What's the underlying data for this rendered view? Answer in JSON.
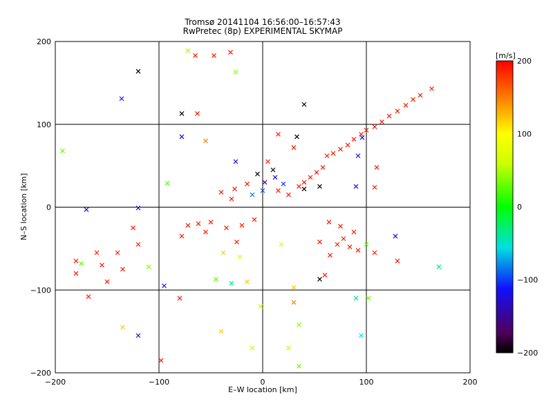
{
  "chart_data": {
    "type": "scatter",
    "title": "Tromsø 20141104 16:56:00–16:57:43",
    "subtitle": "RwPretec (8p) EXPERIMENTAL SKYMAP",
    "xlabel": "E–W location [km]",
    "ylabel": "N–S location [km]",
    "xlim": [
      -200,
      200
    ],
    "ylim": [
      -200,
      200
    ],
    "xticks": [
      -200,
      -100,
      0,
      100,
      200
    ],
    "yticks": [
      -200,
      -100,
      0,
      100,
      200
    ],
    "grid": true,
    "colorbar": {
      "label": "[m/s]",
      "ticks": [
        200,
        100,
        0,
        -100,
        -200
      ],
      "range": [
        -200,
        200
      ]
    },
    "points": [
      {
        "x": -120,
        "y": 164,
        "v": -200,
        "m": "x"
      },
      {
        "x": -136,
        "y": 131,
        "v": -110,
        "m": "x"
      },
      {
        "x": -72,
        "y": 189,
        "v": 50,
        "m": "x"
      },
      {
        "x": -65,
        "y": 183,
        "v": 190,
        "m": "x"
      },
      {
        "x": -47,
        "y": 183,
        "v": 190,
        "m": "x"
      },
      {
        "x": -31,
        "y": 187,
        "v": 190,
        "m": "x"
      },
      {
        "x": -26,
        "y": 163,
        "v": 40,
        "m": "x"
      },
      {
        "x": -78,
        "y": 113,
        "v": -200,
        "m": "x"
      },
      {
        "x": -63,
        "y": 113,
        "v": 190,
        "m": "x"
      },
      {
        "x": 40,
        "y": 124,
        "v": -200,
        "m": "x"
      },
      {
        "x": -78,
        "y": 85,
        "v": -110,
        "m": "x"
      },
      {
        "x": -55,
        "y": 80,
        "v": 150,
        "m": "x"
      },
      {
        "x": -193,
        "y": 68,
        "v": 30,
        "m": "x"
      },
      {
        "x": -120,
        "y": -1,
        "v": -120,
        "m": "x"
      },
      {
        "x": -170,
        "y": -3,
        "v": -120,
        "m": "x"
      },
      {
        "x": -92,
        "y": 29,
        "v": 30,
        "m": "x"
      },
      {
        "x": -26,
        "y": 55,
        "v": -120,
        "m": "x"
      },
      {
        "x": 30,
        "y": 72,
        "v": 190,
        "m": "x"
      },
      {
        "x": 15,
        "y": 88,
        "v": 190,
        "m": "x"
      },
      {
        "x": 33,
        "y": 85,
        "v": -200,
        "m": "x"
      },
      {
        "x": 5,
        "y": 55,
        "v": 190,
        "m": "x"
      },
      {
        "x": 10,
        "y": 45,
        "v": -200,
        "m": "x"
      },
      {
        "x": -5,
        "y": 40,
        "v": -200,
        "m": "x"
      },
      {
        "x": 2,
        "y": 30,
        "v": -150,
        "m": "x"
      },
      {
        "x": 12,
        "y": 36,
        "v": -120,
        "m": "x"
      },
      {
        "x": 20,
        "y": 28,
        "v": -100,
        "m": "x"
      },
      {
        "x": -15,
        "y": 28,
        "v": 190,
        "m": "x"
      },
      {
        "x": -27,
        "y": 22,
        "v": 190,
        "m": "x"
      },
      {
        "x": -40,
        "y": 18,
        "v": 190,
        "m": "x"
      },
      {
        "x": -30,
        "y": 10,
        "v": 190,
        "m": "x"
      },
      {
        "x": -10,
        "y": 15,
        "v": -80,
        "m": "x"
      },
      {
        "x": 0,
        "y": 20,
        "v": -90,
        "m": "x"
      },
      {
        "x": 15,
        "y": 20,
        "v": 190,
        "m": "x"
      },
      {
        "x": 25,
        "y": 15,
        "v": 190,
        "m": "x"
      },
      {
        "x": 35,
        "y": 25,
        "v": 190,
        "m": "x"
      },
      {
        "x": 40,
        "y": 30,
        "v": 190,
        "m": "x"
      },
      {
        "x": 46,
        "y": 36,
        "v": 190,
        "m": "x"
      },
      {
        "x": 52,
        "y": 42,
        "v": 190,
        "m": "x"
      },
      {
        "x": 58,
        "y": 48,
        "v": 190,
        "m": "x"
      },
      {
        "x": 40,
        "y": 22,
        "v": -200,
        "m": "x"
      },
      {
        "x": 55,
        "y": 25,
        "v": -200,
        "m": "x"
      },
      {
        "x": 62,
        "y": 62,
        "v": 190,
        "m": "x"
      },
      {
        "x": 68,
        "y": 65,
        "v": 190,
        "m": "x"
      },
      {
        "x": 75,
        "y": 70,
        "v": 190,
        "m": "x"
      },
      {
        "x": 82,
        "y": 75,
        "v": 190,
        "m": "x"
      },
      {
        "x": 88,
        "y": 82,
        "v": 190,
        "m": "x"
      },
      {
        "x": 95,
        "y": 88,
        "v": 190,
        "m": "x"
      },
      {
        "x": 100,
        "y": 93,
        "v": 190,
        "m": "x"
      },
      {
        "x": 108,
        "y": 97,
        "v": 190,
        "m": "x"
      },
      {
        "x": 115,
        "y": 103,
        "v": 190,
        "m": "x"
      },
      {
        "x": 122,
        "y": 110,
        "v": 190,
        "m": "x"
      },
      {
        "x": 130,
        "y": 116,
        "v": 190,
        "m": "x"
      },
      {
        "x": 138,
        "y": 123,
        "v": 190,
        "m": "x"
      },
      {
        "x": 145,
        "y": 130,
        "v": 190,
        "m": "x"
      },
      {
        "x": 152,
        "y": 135,
        "v": 190,
        "m": "x"
      },
      {
        "x": 163,
        "y": 143,
        "v": 190,
        "m": "x"
      },
      {
        "x": 96,
        "y": 84,
        "v": -120,
        "m": "x"
      },
      {
        "x": 92,
        "y": 62,
        "v": -110,
        "m": "x"
      },
      {
        "x": 110,
        "y": 48,
        "v": 190,
        "m": "x"
      },
      {
        "x": 90,
        "y": 25,
        "v": -110,
        "m": "x"
      },
      {
        "x": 108,
        "y": 24,
        "v": 190,
        "m": "x"
      },
      {
        "x": 64,
        "y": -18,
        "v": 190,
        "m": "x"
      },
      {
        "x": 75,
        "y": -23,
        "v": 190,
        "m": "x"
      },
      {
        "x": 88,
        "y": -30,
        "v": 190,
        "m": "x"
      },
      {
        "x": 78,
        "y": -38,
        "v": 190,
        "m": "x"
      },
      {
        "x": 72,
        "y": -45,
        "v": 190,
        "m": "x"
      },
      {
        "x": 84,
        "y": -48,
        "v": 190,
        "m": "x"
      },
      {
        "x": 92,
        "y": -52,
        "v": 190,
        "m": "x"
      },
      {
        "x": 65,
        "y": -58,
        "v": 190,
        "m": "x"
      },
      {
        "x": 55,
        "y": -42,
        "v": 190,
        "m": "x"
      },
      {
        "x": 100,
        "y": -45,
        "v": 30,
        "m": "x"
      },
      {
        "x": 108,
        "y": -55,
        "v": 190,
        "m": "x"
      },
      {
        "x": 130,
        "y": -65,
        "v": 190,
        "m": "x"
      },
      {
        "x": 128,
        "y": -35,
        "v": -120,
        "m": "x"
      },
      {
        "x": 170,
        "y": -72,
        "v": -30,
        "m": "x"
      },
      {
        "x": 60,
        "y": -82,
        "v": 190,
        "m": "x"
      },
      {
        "x": 55,
        "y": -87,
        "v": -200,
        "m": "x"
      },
      {
        "x": -8,
        "y": -15,
        "v": 190,
        "m": "x"
      },
      {
        "x": -20,
        "y": -22,
        "v": 190,
        "m": "x"
      },
      {
        "x": -35,
        "y": -25,
        "v": 190,
        "m": "x"
      },
      {
        "x": -50,
        "y": -18,
        "v": 190,
        "m": "x"
      },
      {
        "x": -62,
        "y": -20,
        "v": 190,
        "m": "x"
      },
      {
        "x": -72,
        "y": -22,
        "v": 190,
        "m": "x"
      },
      {
        "x": -55,
        "y": -30,
        "v": 190,
        "m": "x"
      },
      {
        "x": -78,
        "y": -35,
        "v": 190,
        "m": "x"
      },
      {
        "x": -25,
        "y": -42,
        "v": 190,
        "m": "x"
      },
      {
        "x": -38,
        "y": -55,
        "v": 120,
        "m": "x"
      },
      {
        "x": -120,
        "y": -45,
        "v": 190,
        "m": "x"
      },
      {
        "x": -125,
        "y": -25,
        "v": 190,
        "m": "x"
      },
      {
        "x": -140,
        "y": -55,
        "v": 190,
        "m": "x"
      },
      {
        "x": -160,
        "y": -55,
        "v": 190,
        "m": "x"
      },
      {
        "x": -180,
        "y": -65,
        "v": 190,
        "m": "x"
      },
      {
        "x": -155,
        "y": -70,
        "v": 190,
        "m": "x"
      },
      {
        "x": -135,
        "y": -75,
        "v": 190,
        "m": "x"
      },
      {
        "x": -150,
        "y": -90,
        "v": 190,
        "m": "x"
      },
      {
        "x": -180,
        "y": -80,
        "v": 190,
        "m": "x"
      },
      {
        "x": -168,
        "y": -108,
        "v": 190,
        "m": "x"
      },
      {
        "x": -110,
        "y": -72,
        "v": 40,
        "m": "x"
      },
      {
        "x": -175,
        "y": -68,
        "v": 30,
        "m": "x"
      },
      {
        "x": -15,
        "y": -90,
        "v": 120,
        "m": "x"
      },
      {
        "x": -45,
        "y": -87,
        "v": 30,
        "m": "x"
      },
      {
        "x": -95,
        "y": -95,
        "v": -120,
        "m": "x"
      },
      {
        "x": -80,
        "y": -110,
        "v": 190,
        "m": "x"
      },
      {
        "x": -30,
        "y": -92,
        "v": -30,
        "m": "x"
      },
      {
        "x": 30,
        "y": -97,
        "v": 120,
        "m": "x"
      },
      {
        "x": 30,
        "y": -115,
        "v": 150,
        "m": "x"
      },
      {
        "x": 35,
        "y": -142,
        "v": 40,
        "m": "x"
      },
      {
        "x": 25,
        "y": -170,
        "v": 60,
        "m": "x"
      },
      {
        "x": -10,
        "y": -170,
        "v": 60,
        "m": "x"
      },
      {
        "x": -40,
        "y": -150,
        "v": 120,
        "m": "x"
      },
      {
        "x": -120,
        "y": -155,
        "v": -120,
        "m": "x"
      },
      {
        "x": -135,
        "y": -145,
        "v": 120,
        "m": "x"
      },
      {
        "x": -98,
        "y": -185,
        "v": 190,
        "m": "x"
      },
      {
        "x": 35,
        "y": -192,
        "v": 30,
        "m": "x"
      },
      {
        "x": 90,
        "y": -110,
        "v": -30,
        "m": "x"
      },
      {
        "x": 102,
        "y": -110,
        "v": 30,
        "m": "x"
      },
      {
        "x": 95,
        "y": -155,
        "v": -50,
        "m": "x"
      },
      {
        "x": -2,
        "y": -120,
        "v": 60,
        "m": "x"
      },
      {
        "x": 18,
        "y": -45,
        "v": 60,
        "m": "x"
      },
      {
        "x": -22,
        "y": -60,
        "v": 80,
        "m": "x"
      }
    ]
  }
}
